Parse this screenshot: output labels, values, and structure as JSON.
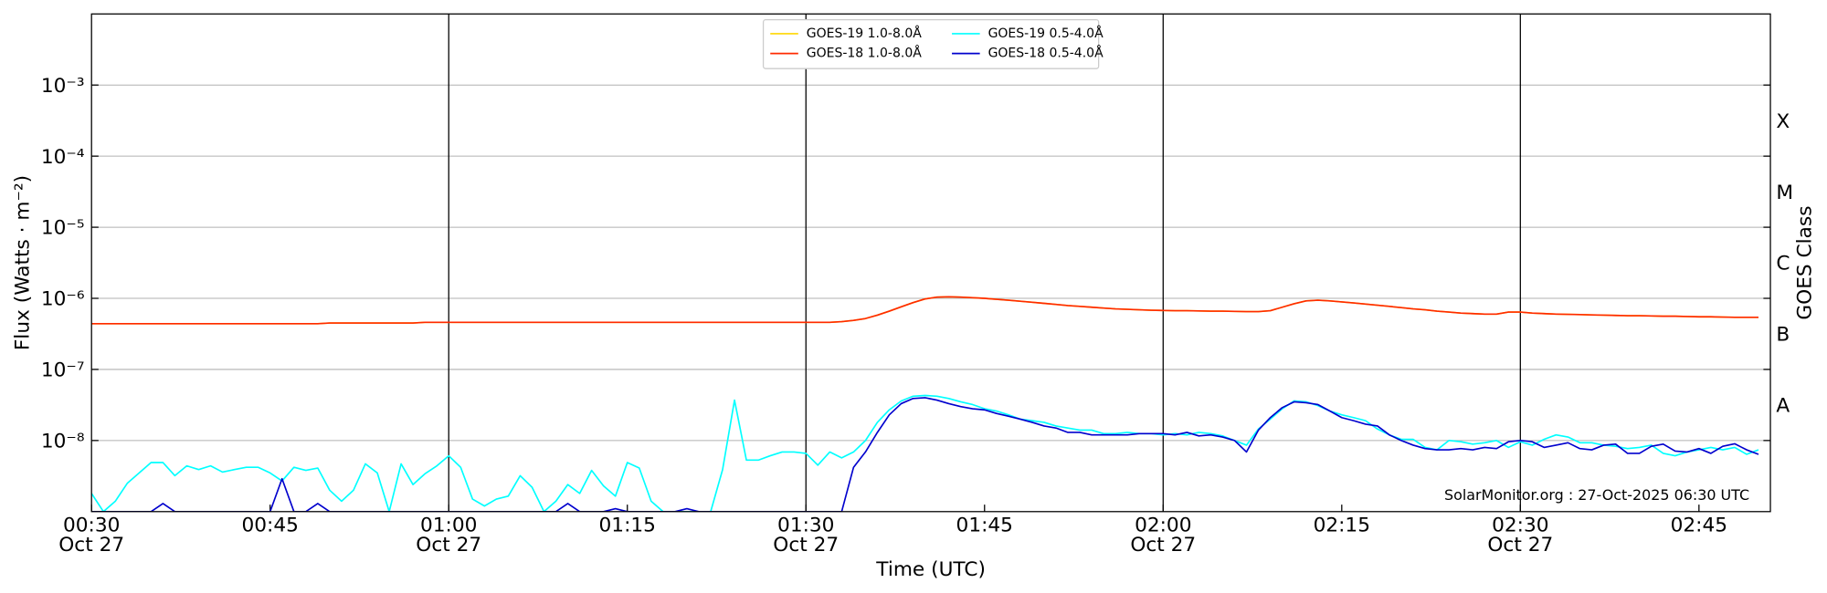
{
  "chart_data": {
    "type": "line",
    "xlabel": "Time (UTC)",
    "ylabel": "Flux (Watts · m⁻²)",
    "y2label": "GOES Class",
    "annotation": "SolarMonitor.org : 27-Oct-2025 06:30 UTC",
    "log_y": true,
    "grid": true,
    "legend": "upper center",
    "legend_columns": 2,
    "xlim": [
      "00:30",
      "02:51"
    ],
    "xticks": [
      {
        "value": "00:30",
        "label": "00:30\nOct 27"
      },
      {
        "value": "00:45",
        "label": "00:45"
      },
      {
        "value": "01:00",
        "label": "01:00\nOct 27"
      },
      {
        "value": "01:15",
        "label": "01:15"
      },
      {
        "value": "01:30",
        "label": "01:30\nOct 27"
      },
      {
        "value": "01:45",
        "label": "01:45"
      },
      {
        "value": "02:00",
        "label": "02:00\nOct 27"
      },
      {
        "value": "02:15",
        "label": "02:15"
      },
      {
        "value": "02:30",
        "label": "02:30\nOct 27"
      },
      {
        "value": "02:45",
        "label": "02:45"
      }
    ],
    "ylim": [
      1e-09,
      0.01
    ],
    "yticks": [
      {
        "value": 1e-08,
        "label": "10⁻⁸"
      },
      {
        "value": 1e-07,
        "label": "10⁻⁷"
      },
      {
        "value": 1e-06,
        "label": "10⁻⁶"
      },
      {
        "value": 1e-05,
        "label": "10⁻⁵"
      },
      {
        "value": 0.0001,
        "label": "10⁻⁴"
      },
      {
        "value": 0.001,
        "label": "10⁻³"
      }
    ],
    "y2lim": [
      1e-09,
      0.01
    ],
    "y2ticks": [
      {
        "value": 3.16e-08,
        "label": "A"
      },
      {
        "value": 3.16e-07,
        "label": "B"
      },
      {
        "value": 3.16e-06,
        "label": "C"
      },
      {
        "value": 3.16e-05,
        "label": "M"
      },
      {
        "value": 0.000316,
        "label": "X"
      }
    ],
    "x": [
      "00:30",
      "00:31",
      "00:32",
      "00:33",
      "00:34",
      "00:35",
      "00:36",
      "00:37",
      "00:38",
      "00:39",
      "00:40",
      "00:41",
      "00:42",
      "00:43",
      "00:44",
      "00:45",
      "00:46",
      "00:47",
      "00:48",
      "00:49",
      "00:50",
      "00:51",
      "00:52",
      "00:53",
      "00:54",
      "00:55",
      "00:56",
      "00:57",
      "00:58",
      "00:59",
      "01:00",
      "01:01",
      "01:02",
      "01:03",
      "01:04",
      "01:05",
      "01:06",
      "01:07",
      "01:08",
      "01:09",
      "01:10",
      "01:11",
      "01:12",
      "01:13",
      "01:14",
      "01:15",
      "01:16",
      "01:17",
      "01:18",
      "01:19",
      "01:20",
      "01:21",
      "01:22",
      "01:23",
      "01:24",
      "01:25",
      "01:26",
      "01:27",
      "01:28",
      "01:29",
      "01:30",
      "01:31",
      "01:32",
      "01:33",
      "01:34",
      "01:35",
      "01:36",
      "01:37",
      "01:38",
      "01:39",
      "01:40",
      "01:41",
      "01:42",
      "01:43",
      "01:44",
      "01:45",
      "01:46",
      "01:47",
      "01:48",
      "01:49",
      "01:50",
      "01:51",
      "01:52",
      "01:53",
      "01:54",
      "01:55",
      "01:56",
      "01:57",
      "01:58",
      "01:59",
      "02:00",
      "02:01",
      "02:02",
      "02:03",
      "02:04",
      "02:05",
      "02:06",
      "02:07",
      "02:08",
      "02:09",
      "02:10",
      "02:11",
      "02:12",
      "02:13",
      "02:14",
      "02:15",
      "02:16",
      "02:17",
      "02:18",
      "02:19",
      "02:20",
      "02:21",
      "02:22",
      "02:23",
      "02:24",
      "02:25",
      "02:26",
      "02:27",
      "02:28",
      "02:29",
      "02:30",
      "02:31",
      "02:32",
      "02:33",
      "02:34",
      "02:35",
      "02:36",
      "02:37",
      "02:38",
      "02:39",
      "02:40",
      "02:41",
      "02:42",
      "02:43",
      "02:44",
      "02:45",
      "02:46",
      "02:47",
      "02:48",
      "02:49",
      "02:50"
    ],
    "series": [
      {
        "name": "GOES-19 1.0-8.0Å",
        "color": "#ffd700",
        "values": [
          4.4e-07,
          4.4e-07,
          4.4e-07,
          4.4e-07,
          4.4e-07,
          4.4e-07,
          4.4e-07,
          4.4e-07,
          4.4e-07,
          4.4e-07,
          4.4e-07,
          4.4e-07,
          4.4e-07,
          4.4e-07,
          4.4e-07,
          4.4e-07,
          4.4e-07,
          4.4e-07,
          4.4e-07,
          4.4e-07,
          4.5e-07,
          4.5e-07,
          4.5e-07,
          4.5e-07,
          4.5e-07,
          4.5e-07,
          4.5e-07,
          4.5e-07,
          4.6e-07,
          4.6e-07,
          4.6e-07,
          4.6e-07,
          4.6e-07,
          4.6e-07,
          4.6e-07,
          4.6e-07,
          4.6e-07,
          4.6e-07,
          4.6e-07,
          4.6e-07,
          4.6e-07,
          4.6e-07,
          4.6e-07,
          4.6e-07,
          4.6e-07,
          4.6e-07,
          4.6e-07,
          4.6e-07,
          4.6e-07,
          4.6e-07,
          4.6e-07,
          4.6e-07,
          4.6e-07,
          4.6e-07,
          4.6e-07,
          4.6e-07,
          4.6e-07,
          4.6e-07,
          4.6e-07,
          4.6e-07,
          4.6e-07,
          4.6e-07,
          4.6e-07,
          4.7e-07,
          4.9e-07,
          5.2e-07,
          5.8e-07,
          6.6e-07,
          7.6e-07,
          8.7e-07,
          9.8e-07,
          1.04e-06,
          1.05e-06,
          1.04e-06,
          1.02e-06,
          1e-06,
          9.7e-07,
          9.4e-07,
          9.1e-07,
          8.8e-07,
          8.5e-07,
          8.2e-07,
          7.9e-07,
          7.7e-07,
          7.5e-07,
          7.3e-07,
          7.1e-07,
          7e-07,
          6.9e-07,
          6.8e-07,
          6.75e-07,
          6.7e-07,
          6.7e-07,
          6.65e-07,
          6.6e-07,
          6.6e-07,
          6.55e-07,
          6.5e-07,
          6.5e-07,
          6.7e-07,
          7.5e-07,
          8.4e-07,
          9.2e-07,
          9.4e-07,
          9.2e-07,
          8.9e-07,
          8.6e-07,
          8.3e-07,
          8e-07,
          7.7e-07,
          7.4e-07,
          7.1e-07,
          6.9e-07,
          6.6e-07,
          6.4e-07,
          6.2e-07,
          6.1e-07,
          6e-07,
          6e-07,
          6.4e-07,
          6.4e-07,
          6.2e-07,
          6.1e-07,
          6e-07,
          5.95e-07,
          5.9e-07,
          5.85e-07,
          5.8e-07,
          5.75e-07,
          5.7e-07,
          5.7e-07,
          5.65e-07,
          5.6e-07,
          5.6e-07,
          5.55e-07,
          5.5e-07,
          5.5e-07,
          5.45e-07,
          5.4e-07,
          5.4e-07,
          5.4e-07
        ]
      },
      {
        "name": "GOES-18 1.0-8.0Å",
        "color": "#ff2a00",
        "values": [
          4.4e-07,
          4.4e-07,
          4.4e-07,
          4.4e-07,
          4.4e-07,
          4.4e-07,
          4.4e-07,
          4.4e-07,
          4.4e-07,
          4.4e-07,
          4.4e-07,
          4.4e-07,
          4.4e-07,
          4.4e-07,
          4.4e-07,
          4.4e-07,
          4.4e-07,
          4.4e-07,
          4.4e-07,
          4.4e-07,
          4.5e-07,
          4.5e-07,
          4.5e-07,
          4.5e-07,
          4.5e-07,
          4.5e-07,
          4.5e-07,
          4.5e-07,
          4.6e-07,
          4.6e-07,
          4.6e-07,
          4.6e-07,
          4.6e-07,
          4.6e-07,
          4.6e-07,
          4.6e-07,
          4.6e-07,
          4.6e-07,
          4.6e-07,
          4.6e-07,
          4.6e-07,
          4.6e-07,
          4.6e-07,
          4.6e-07,
          4.6e-07,
          4.6e-07,
          4.6e-07,
          4.6e-07,
          4.6e-07,
          4.6e-07,
          4.6e-07,
          4.6e-07,
          4.6e-07,
          4.6e-07,
          4.6e-07,
          4.6e-07,
          4.6e-07,
          4.6e-07,
          4.6e-07,
          4.6e-07,
          4.6e-07,
          4.6e-07,
          4.6e-07,
          4.7e-07,
          4.9e-07,
          5.2e-07,
          5.8e-07,
          6.6e-07,
          7.6e-07,
          8.7e-07,
          9.8e-07,
          1.04e-06,
          1.05e-06,
          1.04e-06,
          1.02e-06,
          1e-06,
          9.7e-07,
          9.4e-07,
          9.1e-07,
          8.8e-07,
          8.5e-07,
          8.2e-07,
          7.9e-07,
          7.7e-07,
          7.5e-07,
          7.3e-07,
          7.1e-07,
          7e-07,
          6.9e-07,
          6.8e-07,
          6.75e-07,
          6.7e-07,
          6.7e-07,
          6.65e-07,
          6.6e-07,
          6.6e-07,
          6.55e-07,
          6.5e-07,
          6.5e-07,
          6.7e-07,
          7.5e-07,
          8.4e-07,
          9.2e-07,
          9.4e-07,
          9.2e-07,
          8.9e-07,
          8.6e-07,
          8.3e-07,
          8e-07,
          7.7e-07,
          7.4e-07,
          7.1e-07,
          6.9e-07,
          6.6e-07,
          6.4e-07,
          6.2e-07,
          6.1e-07,
          6e-07,
          6e-07,
          6.4e-07,
          6.4e-07,
          6.2e-07,
          6.1e-07,
          6e-07,
          5.95e-07,
          5.9e-07,
          5.85e-07,
          5.8e-07,
          5.75e-07,
          5.7e-07,
          5.7e-07,
          5.65e-07,
          5.6e-07,
          5.6e-07,
          5.55e-07,
          5.5e-07,
          5.5e-07,
          5.45e-07,
          5.4e-07,
          5.4e-07,
          5.4e-07
        ]
      },
      {
        "name": "GOES-19 0.5-4.0Å",
        "color": "#00ffff",
        "values": [
          1.8e-09,
          1e-09,
          1.4e-09,
          2.5e-09,
          3.5e-09,
          4.9e-09,
          4.9e-09,
          3.2e-09,
          4.4e-09,
          3.9e-09,
          4.4e-09,
          3.6e-09,
          3.9e-09,
          4.2e-09,
          4.2e-09,
          3.5e-09,
          2.7e-09,
          4.2e-09,
          3.8e-09,
          4.1e-09,
          2e-09,
          1.4e-09,
          2e-09,
          4.7e-09,
          3.5e-09,
          1e-09,
          4.7e-09,
          2.4e-09,
          3.4e-09,
          4.4e-09,
          6.1e-09,
          4.2e-09,
          1.5e-09,
          1.2e-09,
          1.5e-09,
          1.65e-09,
          3.2e-09,
          2.2e-09,
          1e-09,
          1.4e-09,
          2.4e-09,
          1.8e-09,
          3.8e-09,
          2.3e-09,
          1.65e-09,
          4.9e-09,
          4.1e-09,
          1.4e-09,
          1e-09,
          1e-09,
          1e-09,
          1e-09,
          1e-09,
          3.9e-09,
          3.7e-08,
          5.3e-09,
          5.3e-09,
          6.1e-09,
          6.9e-09,
          6.9e-09,
          6.6e-09,
          4.5e-09,
          6.9e-09,
          5.7e-09,
          6.9e-09,
          1e-08,
          1.8e-08,
          2.7e-08,
          3.6e-08,
          4.2e-08,
          4.3e-08,
          4.2e-08,
          3.9e-08,
          3.5e-08,
          3.2e-08,
          2.8e-08,
          2.6e-08,
          2.3e-08,
          2e-08,
          1.9e-08,
          1.8e-08,
          1.6e-08,
          1.5e-08,
          1.4e-08,
          1.4e-08,
          1.25e-08,
          1.25e-08,
          1.3e-08,
          1.25e-08,
          1.25e-08,
          1.2e-08,
          1.25e-08,
          1.2e-08,
          1.3e-08,
          1.25e-08,
          1.16e-08,
          1e-08,
          8.6e-09,
          1.45e-08,
          2e-08,
          2.8e-08,
          3.6e-08,
          3.5e-08,
          3.1e-08,
          2.6e-08,
          2.3e-08,
          2.1e-08,
          1.9e-08,
          1.45e-08,
          1.2e-08,
          1.04e-08,
          1.04e-08,
          8e-09,
          7.4e-09,
          1e-08,
          9.6e-09,
          8.9e-09,
          9.3e-09,
          1e-08,
          8e-09,
          9.6e-09,
          8.6e-09,
          1.04e-08,
          1.2e-08,
          1.12e-08,
          9.3e-09,
          9.3e-09,
          8.6e-09,
          8.3e-09,
          7.7e-09,
          8e-09,
          8.6e-09,
          6.6e-09,
          6.1e-09,
          6.9e-09,
          7.4e-09,
          8e-09,
          7.4e-09,
          8e-09,
          6.4e-09,
          7.4e-09
        ]
      },
      {
        "name": "GOES-18 0.5-4.0Å",
        "color": "#0000cd",
        "values": [
          1e-09,
          1e-09,
          1e-09,
          1e-09,
          1e-09,
          1e-09,
          1.3e-09,
          1e-09,
          1e-09,
          1e-09,
          1e-09,
          1e-09,
          1e-09,
          1e-09,
          1e-09,
          1e-09,
          2.9e-09,
          1e-09,
          1e-09,
          1.3e-09,
          1e-09,
          1e-09,
          1e-09,
          1e-09,
          1e-09,
          1e-09,
          1e-09,
          1e-09,
          1e-09,
          1e-09,
          1e-09,
          1e-09,
          1e-09,
          1e-09,
          1e-09,
          1e-09,
          1e-09,
          1e-09,
          1e-09,
          1e-09,
          1.3e-09,
          1e-09,
          1e-09,
          1e-09,
          1.1e-09,
          1e-09,
          1e-09,
          1e-09,
          1e-09,
          1e-09,
          1.1e-09,
          1e-09,
          1e-09,
          1e-09,
          1e-09,
          1e-09,
          1e-09,
          1e-09,
          1e-09,
          1e-09,
          1e-09,
          1e-09,
          1e-09,
          1e-09,
          4.2e-09,
          6.9e-09,
          1.3e-08,
          2.3e-08,
          3.3e-08,
          3.9e-08,
          4e-08,
          3.7e-08,
          3.3e-08,
          3e-08,
          2.8e-08,
          2.7e-08,
          2.4e-08,
          2.2e-08,
          2e-08,
          1.8e-08,
          1.6e-08,
          1.5e-08,
          1.3e-08,
          1.3e-08,
          1.2e-08,
          1.2e-08,
          1.2e-08,
          1.2e-08,
          1.25e-08,
          1.25e-08,
          1.25e-08,
          1.2e-08,
          1.3e-08,
          1.16e-08,
          1.2e-08,
          1.12e-08,
          1e-08,
          6.9e-09,
          1.4e-08,
          2.1e-08,
          2.9e-08,
          3.5e-08,
          3.4e-08,
          3.2e-08,
          2.6e-08,
          2.1e-08,
          1.9e-08,
          1.7e-08,
          1.6e-08,
          1.2e-08,
          1e-08,
          8.6e-09,
          7.7e-09,
          7.4e-09,
          7.4e-09,
          7.7e-09,
          7.4e-09,
          8e-09,
          7.7e-09,
          9.6e-09,
          1e-08,
          9.6e-09,
          8e-09,
          8.6e-09,
          9.3e-09,
          7.7e-09,
          7.4e-09,
          8.6e-09,
          8.9e-09,
          6.6e-09,
          6.6e-09,
          8.3e-09,
          8.9e-09,
          7.1e-09,
          6.9e-09,
          7.7e-09,
          6.6e-09,
          8.3e-09,
          9e-09,
          7.4e-09,
          6.4e-09
        ]
      }
    ]
  }
}
